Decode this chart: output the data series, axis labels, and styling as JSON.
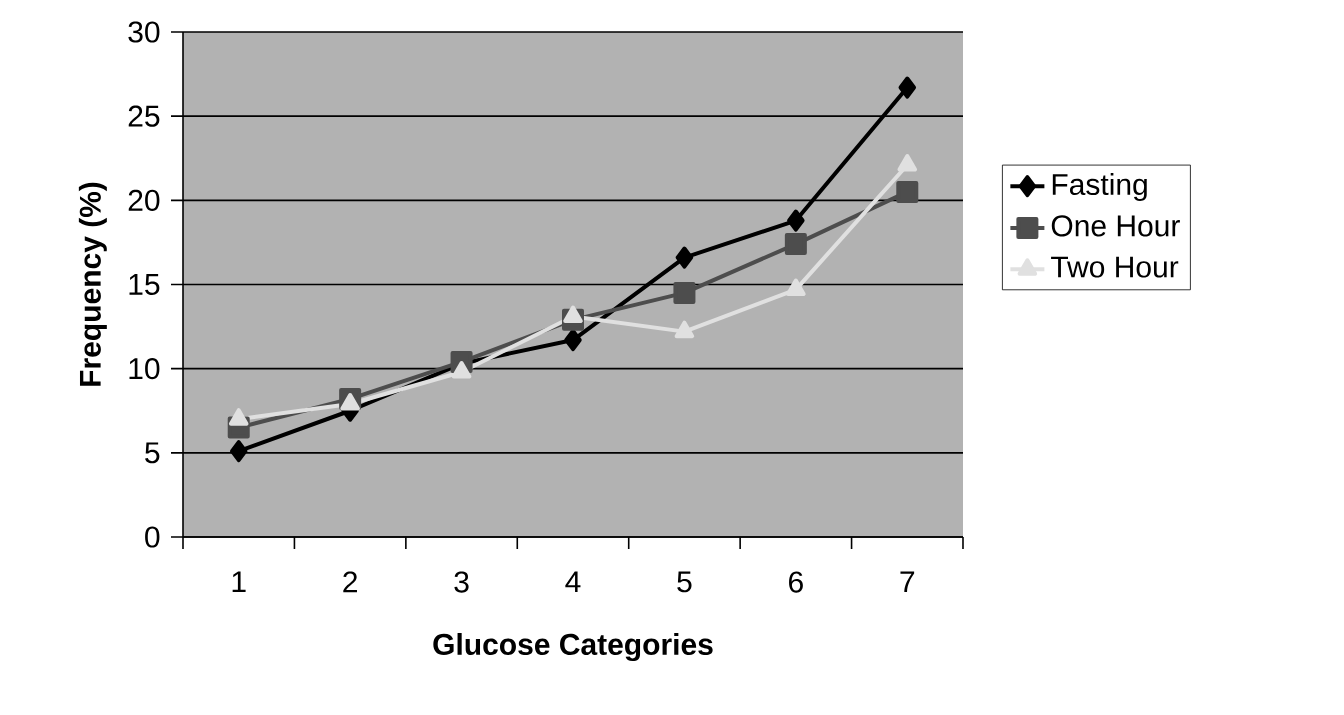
{
  "chart_data": {
    "type": "line",
    "xlabel": "Glucose Categories",
    "ylabel": "Frequency (%)",
    "categories": [
      "1",
      "2",
      "3",
      "4",
      "5",
      "6",
      "7"
    ],
    "series": [
      {
        "name": "Fasting",
        "color": "#000000",
        "marker": "diamond",
        "values": [
          5.1,
          7.5,
          10.3,
          11.7,
          16.6,
          18.8,
          26.7
        ]
      },
      {
        "name": "One Hour",
        "color": "#4d4d4d",
        "marker": "square",
        "values": [
          6.5,
          8.2,
          10.4,
          12.9,
          14.5,
          17.4,
          20.5
        ]
      },
      {
        "name": "Two Hour",
        "color": "#e0e0e0",
        "marker": "triangle",
        "values": [
          7.0,
          7.9,
          9.8,
          13.1,
          12.2,
          14.7,
          22.1
        ]
      }
    ],
    "ylim": [
      0,
      30
    ],
    "yticks": [
      0,
      5,
      10,
      15,
      20,
      25,
      30
    ],
    "grid": "y",
    "legend": "right"
  }
}
